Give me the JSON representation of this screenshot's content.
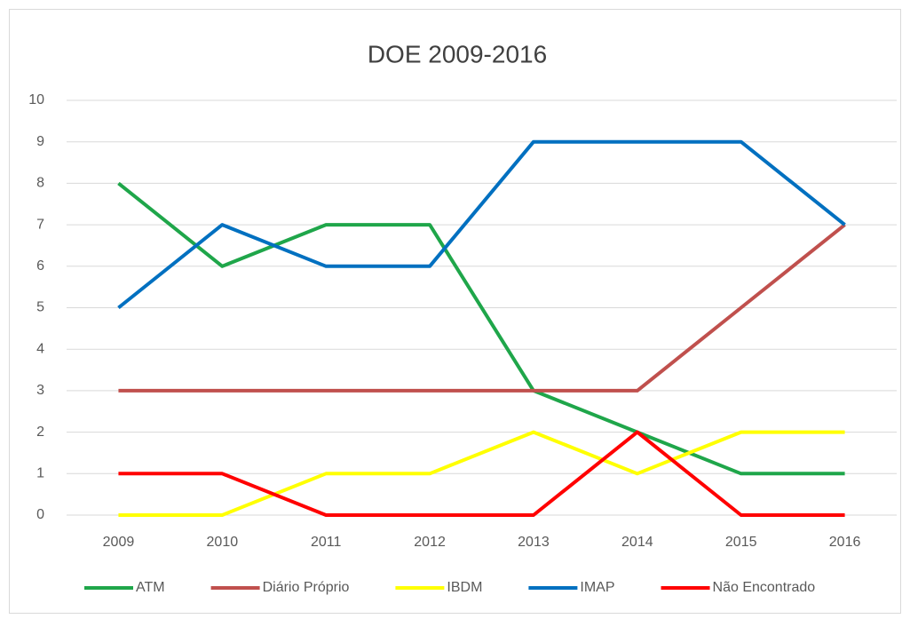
{
  "chart_data": {
    "type": "line",
    "title": "DOE 2009-2016",
    "categories": [
      "2009",
      "2010",
      "2011",
      "2012",
      "2013",
      "2014",
      "2015",
      "2016"
    ],
    "series": [
      {
        "name": "ATM",
        "color": "#1fa64a",
        "values": [
          8,
          6,
          7,
          7,
          3,
          2,
          1,
          1
        ]
      },
      {
        "name": "Diário Próprio",
        "color": "#c0504d",
        "values": [
          3,
          3,
          3,
          3,
          3,
          3,
          5,
          7
        ]
      },
      {
        "name": "IBDM",
        "color": "#ffff00",
        "values": [
          0,
          0,
          1,
          1,
          2,
          1,
          2,
          2
        ]
      },
      {
        "name": "IMAP",
        "color": "#0070c0",
        "values": [
          5,
          7,
          6,
          6,
          9,
          9,
          9,
          7
        ]
      },
      {
        "name": "Não Encontrado",
        "color": "#ff0000",
        "values": [
          1,
          1,
          0,
          0,
          0,
          2,
          0,
          0
        ]
      }
    ],
    "ylim": [
      0,
      10
    ],
    "yticks": [
      0,
      1,
      2,
      3,
      4,
      5,
      6,
      7,
      8,
      9,
      10
    ],
    "grid": true,
    "legend": "bottom"
  }
}
